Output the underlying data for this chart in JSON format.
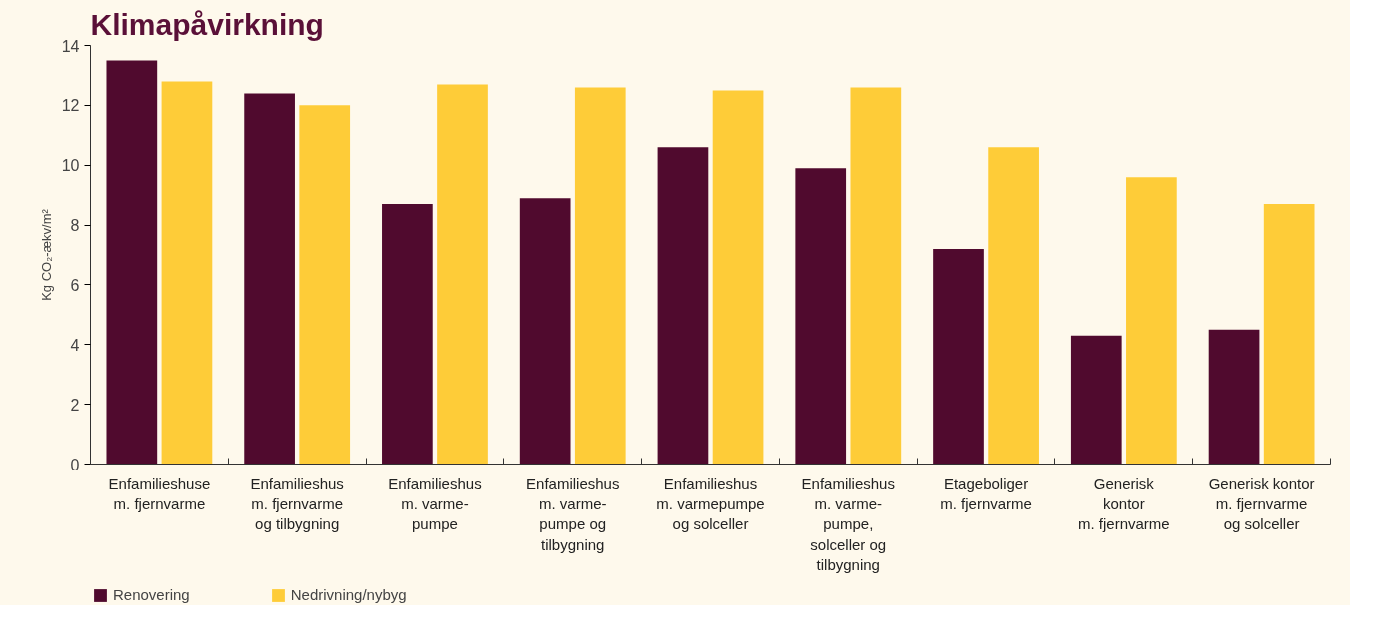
{
  "chart_data": {
    "type": "bar",
    "title": "Klimapåvirkning",
    "ylabel": "Kg CO₂-ækv/m²",
    "categories": [
      "Enfamilieshuse\nm. fjernvarme",
      "Enfamilieshus\nm. fjernvarme\nog tilbygning",
      "Enfamilieshus\nm. varme-\npumpe",
      "Enfamilieshus\nm. varme-\npumpe og\ntilbygning",
      "Enfamilieshus\nm. varmepumpe\nog solceller",
      "Enfamilieshus\nm. varme-\npumpe,\nsolceller og\ntilbygning",
      "Etageboliger\nm. fjernvarme",
      "Generisk\nkontor\nm. fjernvarme",
      "Generisk kontor\nm. fjernvarme\nog solceller"
    ],
    "series": [
      {
        "name": "Renovering",
        "color": "#500a2e",
        "values": [
          13.5,
          12.4,
          8.7,
          8.9,
          10.6,
          9.9,
          7.2,
          4.3,
          4.5
        ]
      },
      {
        "name": "Nedrivning/nybyg",
        "color": "#fecc38",
        "values": [
          12.8,
          12.0,
          12.7,
          12.6,
          12.5,
          12.6,
          10.6,
          9.6,
          8.7
        ]
      }
    ],
    "ylim": [
      0,
      14
    ],
    "yticks": [
      0,
      2,
      4,
      6,
      8,
      10,
      12,
      14
    ],
    "grid": false,
    "legend": "bottom left"
  }
}
